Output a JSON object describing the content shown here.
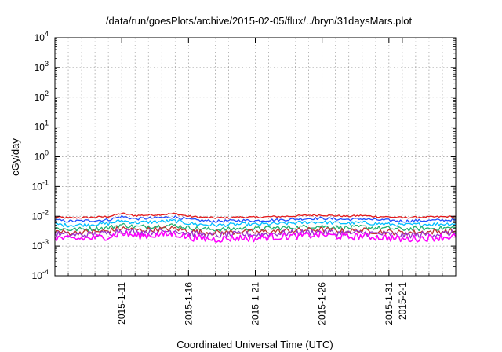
{
  "chart_data": {
    "type": "line",
    "title": "/data/run/goesPlots/archive/2015-02-05/flux/../bryn/31daysMars.plot",
    "xlabel": "Coordinated Universal Time (UTC)",
    "ylabel": "cGy/day",
    "y_scale": "log",
    "ylim": [
      0.0001,
      10000
    ],
    "xlim": [
      "2015-01-06",
      "2015-02-05"
    ],
    "grid": true,
    "y_ticks": [
      {
        "value": 0.0001,
        "base": "10",
        "exp": "-4"
      },
      {
        "value": 0.001,
        "base": "10",
        "exp": "-3"
      },
      {
        "value": 0.01,
        "base": "10",
        "exp": "-2"
      },
      {
        "value": 0.1,
        "base": "10",
        "exp": "-1"
      },
      {
        "value": 1,
        "base": "10",
        "exp": "0"
      },
      {
        "value": 10,
        "base": "10",
        "exp": "1"
      },
      {
        "value": 100,
        "base": "10",
        "exp": "2"
      },
      {
        "value": 1000,
        "base": "10",
        "exp": "3"
      },
      {
        "value": 10000,
        "base": "10",
        "exp": "4"
      }
    ],
    "x_ticks": [
      {
        "date": "2015-01-11",
        "label": "2015-1-11"
      },
      {
        "date": "2015-01-16",
        "label": "2015-1-16"
      },
      {
        "date": "2015-01-21",
        "label": "2015-1-21"
      },
      {
        "date": "2015-01-26",
        "label": "2015-1-26"
      },
      {
        "date": "2015-01-31",
        "label": "2015-1-31"
      },
      {
        "date": "2015-02-01",
        "label": "2015-2-1"
      }
    ],
    "x": [
      "2015-01-06",
      "2015-01-07",
      "2015-01-08",
      "2015-01-09",
      "2015-01-10",
      "2015-01-11",
      "2015-01-12",
      "2015-01-13",
      "2015-01-14",
      "2015-01-15",
      "2015-01-16",
      "2015-01-17",
      "2015-01-18",
      "2015-01-19",
      "2015-01-20",
      "2015-01-21",
      "2015-01-22",
      "2015-01-23",
      "2015-01-24",
      "2015-01-25",
      "2015-01-26",
      "2015-01-27",
      "2015-01-28",
      "2015-01-29",
      "2015-01-30",
      "2015-01-31",
      "2015-02-01",
      "2015-02-02",
      "2015-02-03",
      "2015-02-04",
      "2015-02-05"
    ],
    "series": [
      {
        "color": "#e41a1c",
        "values": [
          0.0095,
          0.0088,
          0.009,
          0.0093,
          0.0098,
          0.0125,
          0.0105,
          0.011,
          0.0115,
          0.0122,
          0.01,
          0.0092,
          0.0088,
          0.009,
          0.0094,
          0.0092,
          0.0096,
          0.0098,
          0.0102,
          0.0108,
          0.011,
          0.0104,
          0.01,
          0.0106,
          0.0098,
          0.0095,
          0.009,
          0.0092,
          0.0094,
          0.0096,
          0.0098
        ]
      },
      {
        "color": "#1f4fff",
        "values": [
          0.0075,
          0.0068,
          0.007,
          0.0072,
          0.0076,
          0.0098,
          0.0082,
          0.0086,
          0.009,
          0.0095,
          0.0078,
          0.0072,
          0.0068,
          0.007,
          0.0073,
          0.0071,
          0.0074,
          0.0076,
          0.008,
          0.0084,
          0.0086,
          0.0081,
          0.0078,
          0.0082,
          0.0076,
          0.0073,
          0.0069,
          0.0071,
          0.0072,
          0.0074,
          0.0076
        ]
      },
      {
        "color": "#00bfff",
        "values": [
          0.0055,
          0.005,
          0.0052,
          0.0054,
          0.0057,
          0.0072,
          0.0061,
          0.0064,
          0.0067,
          0.007,
          0.0058,
          0.0053,
          0.005,
          0.0052,
          0.0054,
          0.0053,
          0.0055,
          0.0057,
          0.006,
          0.0063,
          0.0064,
          0.006,
          0.0058,
          0.0061,
          0.0057,
          0.0054,
          0.0051,
          0.0053,
          0.0054,
          0.0055,
          0.0057
        ]
      },
      {
        "color": "#20b070",
        "values": [
          0.004,
          0.0036,
          0.0037,
          0.0039,
          0.0041,
          0.0052,
          0.0044,
          0.0046,
          0.0048,
          0.005,
          0.0041,
          0.0038,
          0.0036,
          0.0037,
          0.0039,
          0.0038,
          0.004,
          0.0041,
          0.0043,
          0.0045,
          0.0046,
          0.0043,
          0.0041,
          0.0044,
          0.0041,
          0.0039,
          0.0037,
          0.0038,
          0.0039,
          0.004,
          0.0041
        ]
      },
      {
        "color": "#c03030",
        "values": [
          0.0031,
          0.0028,
          0.0029,
          0.003,
          0.0032,
          0.004,
          0.0034,
          0.0036,
          0.0037,
          0.0039,
          0.0032,
          0.0029,
          0.0028,
          0.0029,
          0.003,
          0.0029,
          0.0031,
          0.0032,
          0.0033,
          0.0035,
          0.0036,
          0.0033,
          0.0032,
          0.0034,
          0.0031,
          0.003,
          0.0028,
          0.0029,
          0.003,
          0.0031,
          0.0032
        ]
      },
      {
        "color": "#9933cc",
        "values": [
          0.0026,
          0.0023,
          0.0024,
          0.0025,
          0.0027,
          0.0034,
          0.0029,
          0.003,
          0.0031,
          0.0033,
          0.0027,
          0.0024,
          0.0023,
          0.0024,
          0.0025,
          0.0024,
          0.0026,
          0.0027,
          0.0028,
          0.0029,
          0.003,
          0.0028,
          0.0027,
          0.0028,
          0.0026,
          0.0025,
          0.0023,
          0.0024,
          0.0025,
          0.0026,
          0.0027
        ]
      },
      {
        "color": "#ff00ff",
        "values": [
          0.002,
          0.0017,
          0.0018,
          0.0019,
          0.0021,
          0.0027,
          0.0022,
          0.0023,
          0.0024,
          0.0026,
          0.002,
          0.0018,
          0.0017,
          0.0018,
          0.0019,
          0.0018,
          0.002,
          0.0021,
          0.0022,
          0.0023,
          0.0024,
          0.0022,
          0.002,
          0.0022,
          0.002,
          0.0019,
          0.0017,
          0.0018,
          0.0019,
          0.002,
          0.0021
        ]
      }
    ]
  }
}
